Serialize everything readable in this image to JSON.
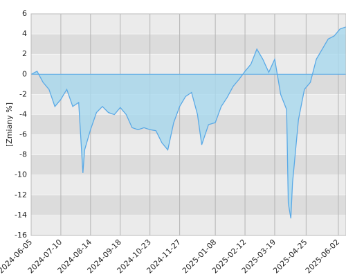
{
  "chart_data": {
    "type": "area",
    "y_label": "[Zmiany %]",
    "x": [
      "2024-06-05",
      "2024-06-12",
      "2024-06-19",
      "2024-06-26",
      "2024-07-03",
      "2024-07-10",
      "2024-07-17",
      "2024-07-24",
      "2024-07-31",
      "2024-08-05",
      "2024-08-07",
      "2024-08-14",
      "2024-08-21",
      "2024-08-28",
      "2024-09-04",
      "2024-09-11",
      "2024-09-18",
      "2024-09-25",
      "2024-10-02",
      "2024-10-09",
      "2024-10-16",
      "2024-10-23",
      "2024-10-30",
      "2024-11-06",
      "2024-11-13",
      "2024-11-20",
      "2024-11-27",
      "2024-12-04",
      "2024-12-11",
      "2024-12-18",
      "2024-12-23",
      "2024-12-31",
      "2025-01-08",
      "2025-01-15",
      "2025-01-22",
      "2025-01-29",
      "2025-02-05",
      "2025-02-12",
      "2025-02-19",
      "2025-02-26",
      "2025-03-05",
      "2025-03-12",
      "2025-03-19",
      "2025-03-26",
      "2025-04-02",
      "2025-04-04",
      "2025-04-07",
      "2025-04-09",
      "2025-04-16",
      "2025-04-23",
      "2025-04-30",
      "2025-05-07",
      "2025-05-14",
      "2025-05-21",
      "2025-05-28",
      "2025-06-04",
      "2025-06-11"
    ],
    "series": [
      {
        "name": "Zmiany",
        "color": "#5aa9e6",
        "fill": "#a8d8ee",
        "values": [
          0,
          0.3,
          -0.8,
          -1.5,
          -3.2,
          -2.5,
          -1.5,
          -3.2,
          -2.8,
          -9.8,
          -7.5,
          -5.5,
          -3.8,
          -3.2,
          -3.8,
          -4,
          -3.3,
          -4,
          -5.3,
          -5.5,
          -5.3,
          -5.5,
          -5.6,
          -6.8,
          -7.5,
          -4.8,
          -3.2,
          -2.2,
          -1.8,
          -4,
          -7,
          -5,
          -4.8,
          -3.2,
          -2.3,
          -1.2,
          -0.5,
          0.3,
          1,
          2.5,
          1.5,
          0.2,
          1.5,
          -2,
          -3.5,
          -12.8,
          -14.3,
          -10.8,
          -4.5,
          -1.5,
          -0.8,
          1.5,
          2.5,
          3.5,
          3.8,
          4.5,
          4.7
        ]
      }
    ],
    "xlim": [
      "2024-06-05",
      "2025-06-11"
    ],
    "xticks": [
      "2024-06-05",
      "2024-07-10",
      "2024-08-14",
      "2024-09-18",
      "2024-10-23",
      "2024-11-27",
      "2025-01-08",
      "2025-02-12",
      "2025-03-19",
      "2025-04-25",
      "2025-06-02"
    ],
    "ylim": [
      -16,
      6
    ],
    "yticks": [
      -16,
      -14,
      -12,
      -10,
      -8,
      -6,
      -4,
      -2,
      0,
      2,
      4,
      6
    ],
    "bands": [
      "#ebebeb",
      "#dcdcdc"
    ],
    "grid": true
  }
}
